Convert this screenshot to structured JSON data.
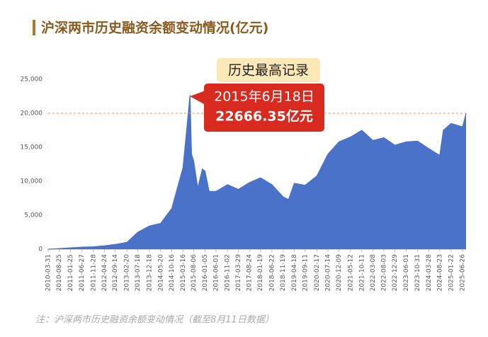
{
  "chart_data": {
    "type": "area",
    "title": "沪深两市历史融资余额变动情况(亿元)",
    "footnote": "注：沪深两市历史融资余额变动情况（截至8月11日数据）",
    "annotations": [
      "历史最高记录",
      "2015年6月18日",
      "22666.35亿元"
    ],
    "x": [
      "2010-03-31",
      "2010-08-25",
      "2011-01-25",
      "2011-06-27",
      "2011-11-28",
      "2012-04-24",
      "2012-09-14",
      "2013-02-20",
      "2013-07-18",
      "2013-12-18",
      "2014-05-20",
      "2014-10-16",
      "2015-03-16",
      "2015-06-18",
      "2015-07-08",
      "2015-08-06",
      "2015-09-30",
      "2015-12-01",
      "2016-01-05",
      "2016-03-01",
      "2016-06-01",
      "2016-11-02",
      "2017-03-29",
      "2017-08-24",
      "2018-01-19",
      "2018-06-22",
      "2018-11-19",
      "2019-01-31",
      "2019-04-18",
      "2019-09-11",
      "2020-02-17",
      "2020-07-14",
      "2020-12-09",
      "2021-05-12",
      "2021-10-11",
      "2022-03-08",
      "2022-08-03",
      "2022-12-29",
      "2023-06-01",
      "2023-10-31",
      "2024-03-28",
      "2024-08-23",
      "2024-10-10",
      "2025-01-22",
      "2025-06-26",
      "2025-08-11"
    ],
    "series": [
      {
        "name": "融资余额",
        "color": "#4a72c8",
        "values": [
          0,
          100,
          200,
          300,
          350,
          500,
          700,
          1000,
          2500,
          3400,
          3800,
          6000,
          12000,
          22666.35,
          14000,
          13000,
          9000,
          11800,
          11500,
          8500,
          8500,
          9500,
          8800,
          9800,
          10500,
          9500,
          7700,
          7300,
          9700,
          9400,
          10800,
          14000,
          15800,
          16500,
          17500,
          16000,
          16400,
          15300,
          15800,
          15900,
          14800,
          13800,
          17500,
          18500,
          18000,
          20000
        ]
      }
    ],
    "xlim": [
      "2010-03-31",
      "2025-08-11"
    ],
    "xticks": [
      "2010-03-31",
      "2010-08-25",
      "2011-01-25",
      "2011-06-27",
      "2011-11-28",
      "2012-04-24",
      "2012-09-14",
      "2013-02-20",
      "2013-07-18",
      "2013-12-18",
      "2014-05-20",
      "2014-10-16",
      "2015-03-16",
      "2015-08-06",
      "2016-01-05",
      "2016-06-01",
      "2016-11-02",
      "2017-03-29",
      "2017-08-24",
      "2018-01-19",
      "2018-06-22",
      "2018-11-19",
      "2019-04-18",
      "2019-09-11",
      "2020-02-17",
      "2020-07-14",
      "2020-12-09",
      "2021-05-12",
      "2021-10-11",
      "2022-03-08",
      "2022-08-03",
      "2022-12-29",
      "2023-06-01",
      "2023-10-31",
      "2024-03-28",
      "2024-08-23",
      "2025-01-22",
      "2025-06-26"
    ],
    "ylim": [
      0,
      25000
    ],
    "yticks": [
      0,
      {
        "value": 5000,
        "label": "5,000"
      },
      {
        "value": 10000,
        "label": "10,000"
      },
      {
        "value": 15000,
        "label": "15,000"
      },
      {
        "value": 20000,
        "label": "20,000"
      },
      {
        "value": 25000,
        "label": "25,000"
      }
    ],
    "reference_line": 20000,
    "reference_color": "#f08a4b"
  }
}
